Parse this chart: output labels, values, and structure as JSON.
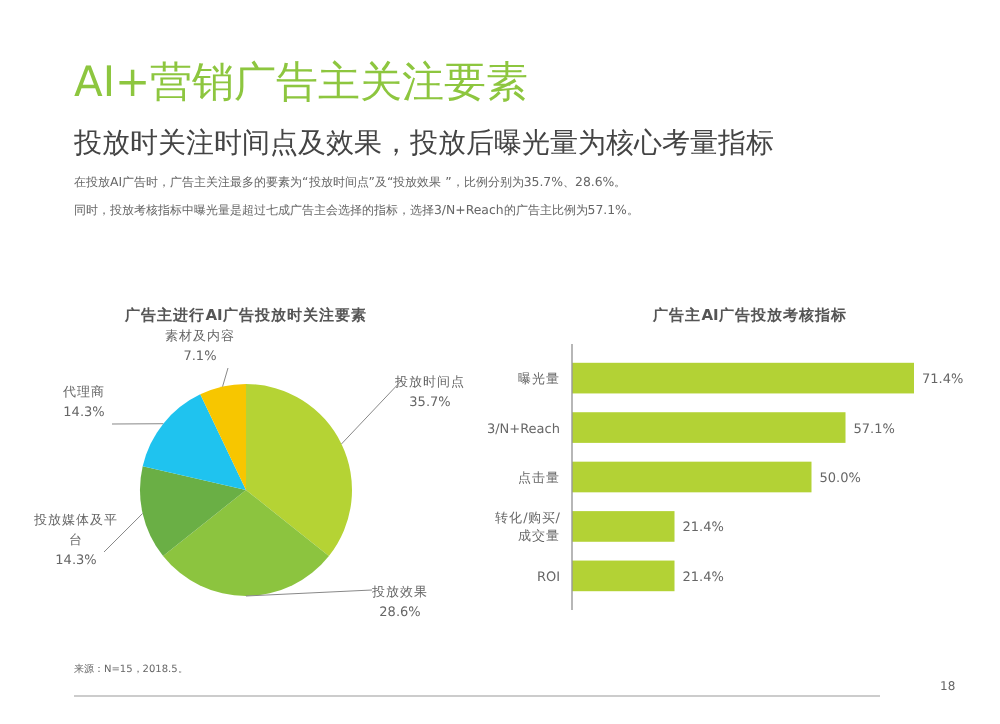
{
  "chart_data": [
    {
      "type": "other",
      "title": "AI+营销广告主关注要素",
      "subtitle": "投放时关注时间点及效果，投放后曝光量为核心考量指标",
      "annotations": [
        "在投放AI广告时，广告主关注最多的要素为“投放时间点”及“投放效果 ”，比例分别为35.7%、28.6%。",
        "同时，投放考核指标中曝光量是超过七成广告主会选择的指标，选择3/N+Reach的广告主比例为57.1%。",
        "来源：N=15，2018.5。",
        "18"
      ]
    },
    {
      "type": "pie",
      "title": "广告主进行AI广告投放时关注要素",
      "categories": [
        "投放时间点",
        "投放效果",
        "投放媒体及平台",
        "代理商",
        "素材及内容"
      ],
      "values": [
        35.7,
        28.6,
        14.3,
        14.3,
        7.1
      ],
      "colors": [
        "#b5d334",
        "#8cc43f",
        "#6aaf45",
        "#1fc3ef",
        "#f7c600"
      ],
      "value_labels": [
        "35.7%",
        "28.6%",
        "14.3%",
        "14.3%",
        "7.1%"
      ]
    },
    {
      "type": "bar",
      "orientation": "horizontal",
      "title": "广告主AI广告投放考核指标",
      "categories": [
        "曝光量",
        "3/N+Reach",
        "点击量",
        "转化/购买/成交量",
        "ROI"
      ],
      "values": [
        71.4,
        57.1,
        50.0,
        21.4,
        21.4
      ],
      "value_labels": [
        "71.4%",
        "57.1%",
        "50.0%",
        "21.4%",
        "21.4%"
      ],
      "color": "#b3d235",
      "relative": false
    }
  ]
}
